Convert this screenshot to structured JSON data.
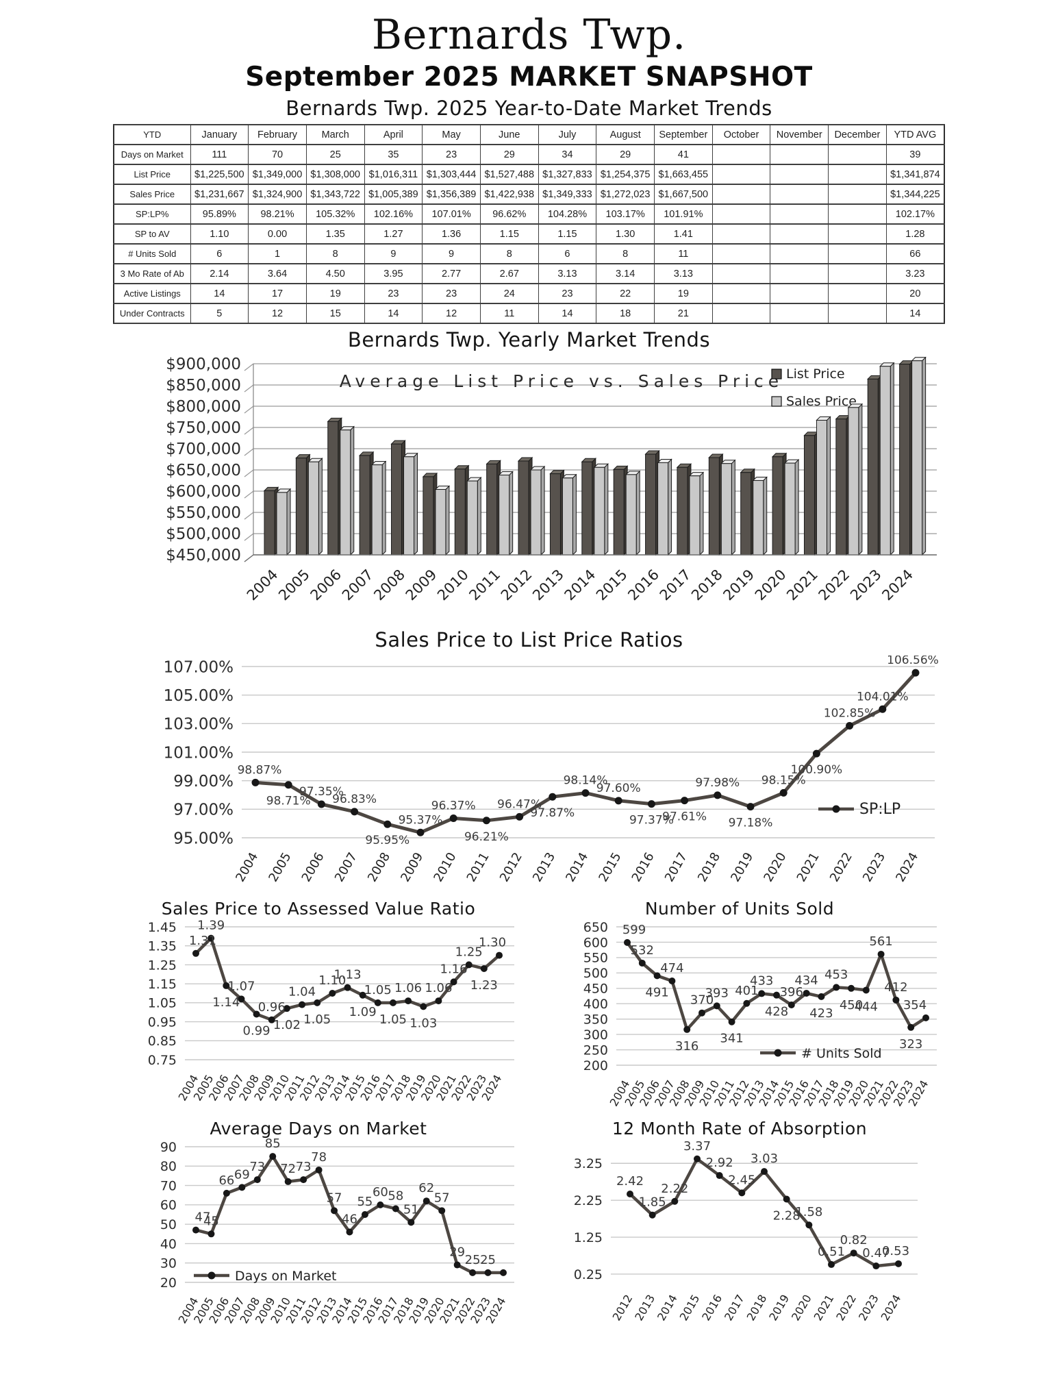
{
  "page": {
    "title": "Bernards Twp.",
    "subtitle": "September 2025 MARKET SNAPSHOT"
  },
  "colors": {
    "list_bar": "#57524d",
    "sales_bar": "#c9c9c9",
    "line": "#4d4742",
    "marker": "#171717",
    "gridline": "#c9c9c9"
  },
  "table": {
    "title": "Bernards Twp. 2025 Year-to-Date Market Trends",
    "columns": [
      "YTD",
      "January",
      "February",
      "March",
      "April",
      "May",
      "June",
      "July",
      "August",
      "September",
      "October",
      "November",
      "December",
      "YTD AVG"
    ],
    "rows": [
      {
        "label": "Days on Market",
        "values": [
          "111",
          "70",
          "25",
          "35",
          "23",
          "29",
          "34",
          "29",
          "41",
          "",
          "",
          "",
          "39"
        ]
      },
      {
        "label": "List Price",
        "values": [
          "$1,225,500",
          "$1,349,000",
          "$1,308,000",
          "$1,016,311",
          "$1,303,444",
          "$1,527,488",
          "$1,327,833",
          "$1,254,375",
          "$1,663,455",
          "",
          "",
          "",
          "$1,341,874"
        ]
      },
      {
        "label": "Sales Price",
        "values": [
          "$1,231,667",
          "$1,324,900",
          "$1,343,722",
          "$1,005,389",
          "$1,356,389",
          "$1,422,938",
          "$1,349,333",
          "$1,272,023",
          "$1,667,500",
          "",
          "",
          "",
          "$1,344,225"
        ]
      },
      {
        "label": "SP:LP%",
        "values": [
          "95.89%",
          "98.21%",
          "105.32%",
          "102.16%",
          "107.01%",
          "96.62%",
          "104.28%",
          "103.17%",
          "101.91%",
          "",
          "",
          "",
          "102.17%"
        ]
      },
      {
        "label": "SP to AV",
        "values": [
          "1.10",
          "0.00",
          "1.35",
          "1.27",
          "1.36",
          "1.15",
          "1.15",
          "1.30",
          "1.41",
          "",
          "",
          "",
          "1.28"
        ]
      },
      {
        "label": "# Units Sold",
        "values": [
          "6",
          "1",
          "8",
          "9",
          "9",
          "8",
          "6",
          "8",
          "11",
          "",
          "",
          "",
          "66"
        ]
      },
      {
        "label": "3 Mo Rate of Ab",
        "values": [
          "2.14",
          "3.64",
          "4.50",
          "3.95",
          "2.77",
          "2.67",
          "3.13",
          "3.14",
          "3.13",
          "",
          "",
          "",
          "3.23"
        ]
      },
      {
        "label": "Active Listings",
        "values": [
          "14",
          "17",
          "19",
          "23",
          "23",
          "24",
          "23",
          "22",
          "19",
          "",
          "",
          "",
          "20"
        ]
      },
      {
        "label": "Under Contracts",
        "values": [
          "5",
          "12",
          "15",
          "14",
          "12",
          "11",
          "14",
          "18",
          "21",
          "",
          "",
          "",
          "14"
        ]
      }
    ]
  },
  "yearly_title": "Bernards Twp. Yearly Market Trends",
  "chart_data": [
    {
      "id": "list-vs-sales",
      "type": "bar",
      "title": "Average List Price vs. Sales Price",
      "categories": [
        "2004",
        "2005",
        "2006",
        "2007",
        "2008",
        "2009",
        "2010",
        "2011",
        "2012",
        "2013",
        "2014",
        "2015",
        "2016",
        "2017",
        "2018",
        "2019",
        "2020",
        "2021",
        "2022",
        "2023",
        "2024"
      ],
      "series": [
        {
          "name": "List Price",
          "color": "#57524d",
          "values": [
            601000,
            678000,
            764000,
            684000,
            711000,
            634000,
            652000,
            664000,
            671000,
            641000,
            669000,
            651000,
            687000,
            656000,
            679000,
            644000,
            681000,
            731000,
            770000,
            864000,
            899000
          ]
        },
        {
          "name": "Sales Price",
          "color": "#c9c9c9",
          "values": [
            597000,
            669000,
            744000,
            662000,
            681000,
            604000,
            624000,
            638000,
            650000,
            631000,
            656000,
            639000,
            667000,
            636000,
            665000,
            625000,
            666000,
            767000,
            797000,
            894000,
            907000
          ]
        }
      ],
      "y_ticks": [
        900000,
        850000,
        800000,
        750000,
        700000,
        650000,
        600000,
        550000,
        500000,
        450000
      ],
      "y_tick_labels": [
        "$900,000",
        "$850,000",
        "$800,000",
        "$750,000",
        "$700,000",
        "$650,000",
        "$600,000",
        "$550,000",
        "$500,000",
        "$450,000"
      ],
      "ylim": [
        450000,
        900000
      ],
      "legend_position": "top-right",
      "grid": true
    },
    {
      "id": "splp",
      "type": "line",
      "title": "Sales Price to List Price Ratios",
      "legend": "SP:LP",
      "x": [
        "2004",
        "2005",
        "2006",
        "2007",
        "2008",
        "2009",
        "2010",
        "2011",
        "2012",
        "2013",
        "2014",
        "2015",
        "2016",
        "2017",
        "2018",
        "2019",
        "2020",
        "2021",
        "2022",
        "2023",
        "2024"
      ],
      "values": [
        98.87,
        98.71,
        97.35,
        96.83,
        95.95,
        95.37,
        96.37,
        96.21,
        96.47,
        97.87,
        98.14,
        97.6,
        97.37,
        97.61,
        97.98,
        97.18,
        98.15,
        100.9,
        102.85,
        104.01,
        106.56
      ],
      "labels": [
        "98.87%",
        "98.71%",
        "97.35%",
        "96.83%",
        "95.95%",
        "95.37%",
        "96.37%",
        "96.21%",
        "96.47%",
        "97.87%",
        "98.14%",
        "97.60%",
        "97.37%",
        "97.61%",
        "97.98%",
        "97.18%",
        "98.15%",
        "100.90%",
        "102.85%",
        "104.01%",
        "106.56%"
      ],
      "label_pos": [
        "a",
        "b",
        "a",
        "a",
        "b",
        "a",
        "a",
        "b",
        "a",
        "b",
        "a",
        "a",
        "b",
        "b",
        "a",
        "b",
        "a",
        "b",
        "a",
        "a",
        "a"
      ],
      "y_ticks": [
        107,
        105,
        103,
        101,
        99,
        97,
        95
      ],
      "y_tick_labels": [
        "107.00%",
        "105.00%",
        "103.00%",
        "101.00%",
        "99.00%",
        "97.00%",
        "95.00%"
      ],
      "ylim": [
        95,
        107
      ],
      "grid": true,
      "legend_position": "right"
    },
    {
      "id": "spav",
      "type": "line",
      "title": "Sales Price to Assessed Value Ratio",
      "legend": "",
      "x": [
        "2004",
        "2005",
        "2006",
        "2007",
        "2008",
        "2009",
        "2010",
        "2011",
        "2012",
        "2013",
        "2014",
        "2015",
        "2016",
        "2017",
        "2018",
        "2019",
        "2020",
        "2021",
        "2022",
        "2023",
        "2024"
      ],
      "values": [
        1.31,
        1.39,
        1.14,
        1.07,
        0.99,
        0.96,
        1.02,
        1.04,
        1.05,
        1.1,
        1.13,
        1.09,
        1.05,
        1.05,
        1.06,
        1.03,
        1.06,
        1.16,
        1.25,
        1.23,
        1.3
      ],
      "labels": [
        "1.31",
        "1.39",
        "1.14",
        "1.07",
        "0.99",
        "0.96",
        "1.02",
        "1.04",
        "1.05",
        "1.10",
        "1.13",
        "1.09",
        "1.05",
        "1.05",
        "1.06",
        "1.03",
        "1.06",
        "1.16",
        "1.25",
        "1.23",
        "1.30"
      ],
      "label_pos": [
        "a",
        "a",
        "b",
        "a",
        "b",
        "a",
        "b",
        "a",
        "b",
        "a",
        "a",
        "b",
        "a",
        "b",
        "a",
        "b",
        "a",
        "a",
        "a",
        "b",
        "a"
      ],
      "y_ticks": [
        1.45,
        1.35,
        1.25,
        1.15,
        1.05,
        0.95,
        0.85,
        0.75
      ],
      "y_tick_labels": [
        "1.45",
        "1.35",
        "1.25",
        "1.15",
        "1.05",
        "0.95",
        "0.85",
        "0.75"
      ],
      "ylim": [
        0.75,
        1.45
      ],
      "grid": true
    },
    {
      "id": "units",
      "type": "line",
      "title": "Number of Units Sold",
      "legend": "# Units Sold",
      "x": [
        "2004",
        "2005",
        "2006",
        "2007",
        "2008",
        "2009",
        "2010",
        "2011",
        "2012",
        "2013",
        "2014",
        "2015",
        "2016",
        "2017",
        "2018",
        "2019",
        "2020",
        "2021",
        "2022",
        "2023",
        "2024"
      ],
      "values": [
        599,
        532,
        491,
        474,
        316,
        370,
        393,
        341,
        401,
        433,
        428,
        396,
        434,
        423,
        453,
        450,
        444,
        561,
        412,
        323,
        354
      ],
      "labels": [
        "599",
        "532",
        "491",
        "474",
        "316",
        "370",
        "393",
        "341",
        "401",
        "433",
        "428",
        "396",
        "434",
        "423",
        "453",
        "450",
        "444",
        "561",
        "412",
        "323",
        "354"
      ],
      "label_pos": [
        "a",
        "a",
        "b",
        "a",
        "b",
        "a",
        "a",
        "b",
        "a",
        "a",
        "b",
        "a",
        "a",
        "b",
        "a",
        "b",
        "b",
        "a",
        "a",
        "b",
        "a"
      ],
      "y_ticks": [
        650,
        600,
        550,
        500,
        450,
        400,
        350,
        300,
        250,
        200
      ],
      "y_tick_labels": [
        "650",
        "600",
        "550",
        "500",
        "450",
        "400",
        "350",
        "300",
        "250",
        "200"
      ],
      "ylim": [
        200,
        650
      ],
      "grid": true,
      "legend_position": "bottom-right"
    },
    {
      "id": "dom",
      "type": "line",
      "title": "Average Days on Market",
      "legend": "Days on Market",
      "x": [
        "2004",
        "2005",
        "2006",
        "2007",
        "2008",
        "2009",
        "2010",
        "2011",
        "2012",
        "2013",
        "2014",
        "2015",
        "2016",
        "2017",
        "2018",
        "2019",
        "2020",
        "2021",
        "2022",
        "2023",
        "2024"
      ],
      "values": [
        47,
        45,
        66,
        69,
        73,
        85,
        72,
        73,
        78,
        57,
        46,
        55,
        60,
        58,
        51,
        62,
        57,
        29,
        25,
        25,
        25
      ],
      "labels": [
        "47",
        "45",
        "66",
        "69",
        "73",
        "85",
        "72",
        "73",
        "78",
        "57",
        "46",
        "55",
        "60",
        "58",
        "51",
        "62",
        "57",
        "29",
        "25",
        "25",
        ""
      ],
      "label_pos": [
        "a",
        "a",
        "a",
        "a",
        "a",
        "a",
        "a",
        "a",
        "a",
        "a",
        "a",
        "a",
        "a",
        "a",
        "a",
        "a",
        "a",
        "a",
        "a",
        "a",
        "a"
      ],
      "y_ticks": [
        90,
        80,
        70,
        60,
        50,
        40,
        30,
        20
      ],
      "y_tick_labels": [
        "90",
        "80",
        "70",
        "60",
        "50",
        "40",
        "30",
        "20"
      ],
      "ylim": [
        20,
        90
      ],
      "grid": true,
      "legend_position": "bottom-left"
    },
    {
      "id": "absorption",
      "type": "line",
      "title": "12 Month Rate of Absorption",
      "legend": "",
      "x": [
        "2012",
        "2013",
        "2014",
        "2015",
        "2016",
        "2017",
        "2018",
        "2019",
        "2020",
        "2021",
        "2022",
        "2023",
        "2024"
      ],
      "values": [
        2.42,
        1.85,
        2.22,
        3.37,
        2.92,
        2.45,
        3.03,
        2.28,
        1.58,
        0.51,
        0.82,
        0.47,
        0.53
      ],
      "labels": [
        "2.42",
        "1.85",
        "2.22",
        "3.37",
        "2.92",
        "2.45",
        "3.03",
        "2.28",
        "1.58",
        "0.51",
        "0.82",
        "0.47",
        "0.53"
      ],
      "label_pos": [
        "a",
        "a",
        "a",
        "a",
        "a",
        "a",
        "a",
        "b",
        "a",
        "a",
        "a",
        "a",
        "a"
      ],
      "y_ticks": [
        3.25,
        2.25,
        1.25,
        0.25
      ],
      "y_tick_labels": [
        "3.25",
        "2.25",
        "1.25",
        "0.25"
      ],
      "ylim": [
        0.1,
        3.7
      ],
      "grid": true
    }
  ]
}
